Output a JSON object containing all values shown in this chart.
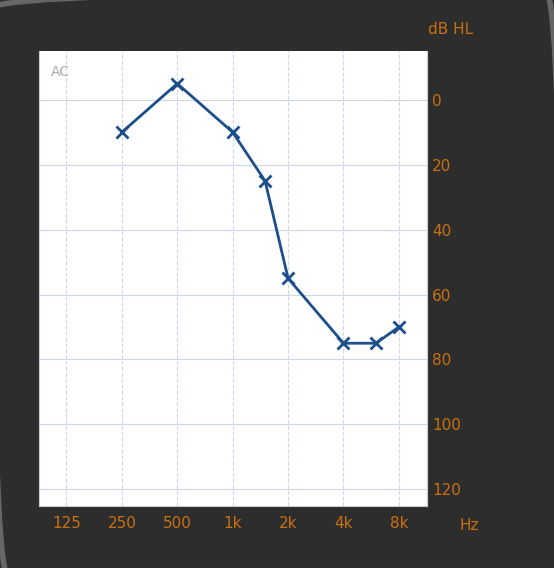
{
  "plot_freqs": [
    250,
    500,
    1000,
    1500,
    2000,
    4000,
    6000,
    8000
  ],
  "plot_thresholds": [
    10,
    -5,
    10,
    25,
    55,
    75,
    75,
    70
  ],
  "xtick_positions": [
    125,
    250,
    500,
    1000,
    2000,
    4000,
    8000
  ],
  "xtick_labels": [
    "125",
    "250",
    "500",
    "1k",
    "2k",
    "4k",
    "8k"
  ],
  "x_positions": [
    125,
    250,
    500,
    1000,
    2000,
    4000,
    8000
  ],
  "ymin": -15,
  "ymax": 125,
  "yticks": [
    0,
    20,
    40,
    60,
    80,
    100,
    120
  ],
  "line_color": "#1c4e8c",
  "marker_color": "#1c4e8c",
  "tick_color": "#c87010",
  "ac_label_color": "#aaaaaa",
  "grid_color": "#ccd8e8",
  "background_color": "#ffffff",
  "outer_bg": "#2d2d2d",
  "ylabel_right": "dB HL",
  "xlabel": "Hz",
  "ac_text": "AC",
  "line_width": 2.0,
  "marker_size": 8,
  "marker_edge_width": 2.0
}
